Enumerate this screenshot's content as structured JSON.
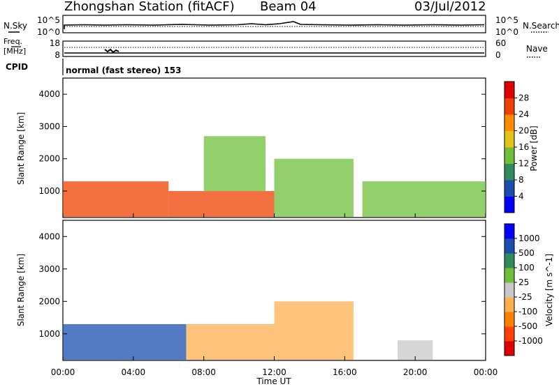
{
  "header": {
    "station": "Zhongshan Station (fitACF)",
    "beam": "Beam 04",
    "date": "03/Jul/2012"
  },
  "top_panels": {
    "nsky_label": "N.Sky",
    "nsky_ticks": [
      "10^5",
      "10^0"
    ],
    "nsearch_label": "N.Search",
    "nsearch_ticks": [
      "10^5",
      "10^0"
    ],
    "freq_label_1": "Freq.",
    "freq_label_2": "[MHz]",
    "freq_ticks": [
      "18",
      "8"
    ],
    "nave_label": "Nave",
    "nave_ticks": [
      "60",
      "0"
    ],
    "cpid_label": "CPID",
    "cpid_text": "normal (fast stereo) 153"
  },
  "axes": {
    "ylabel": "Slant Range [km]",
    "yticks": [
      "4000",
      "3000",
      "2000",
      "1000"
    ],
    "xticks": [
      "00:00",
      "04:00",
      "08:00",
      "12:00",
      "16:00",
      "20:00",
      "00:00"
    ],
    "xlabel": "Time UT"
  },
  "chart_data": [
    {
      "type": "heatmap",
      "title": "",
      "xlabel": "Time UT",
      "ylabel": "Slant Range [km]",
      "xlim": [
        "00:00",
        "24:00"
      ],
      "ylim": [
        180,
        4500
      ],
      "colorbar": {
        "label": "Power [dB]",
        "ticks": [
          "28",
          "24",
          "20",
          "16",
          "12",
          "8",
          "4"
        ],
        "colors": [
          "#0000ff",
          "#1a4fb0",
          "#2f8a5c",
          "#6fbf3a",
          "#e5c21a",
          "#ff8c00",
          "#f04000",
          "#e00000"
        ]
      },
      "echo_regions": [
        {
          "t_start": "00:00",
          "t_end": "06:00",
          "r_min": 200,
          "r_max": 1300,
          "level_db": 24
        },
        {
          "t_start": "06:00",
          "t_end": "12:00",
          "r_min": 200,
          "r_max": 1000,
          "level_db": 24
        },
        {
          "t_start": "08:00",
          "t_end": "11:30",
          "r_min": 1000,
          "r_max": 2700,
          "level_db": 12
        },
        {
          "t_start": "12:00",
          "t_end": "16:30",
          "r_min": 200,
          "r_max": 2000,
          "level_db": 12
        },
        {
          "t_start": "17:00",
          "t_end": "24:00",
          "r_min": 200,
          "r_max": 1300,
          "level_db": 12
        }
      ]
    },
    {
      "type": "heatmap",
      "title": "",
      "xlabel": "Time UT",
      "ylabel": "Slant Range [km]",
      "xlim": [
        "00:00",
        "24:00"
      ],
      "ylim": [
        180,
        4500
      ],
      "colorbar": {
        "label": "Velocity [m s^-1]",
        "ticks": [
          "1000",
          "500",
          "100",
          "25",
          "-25",
          "-100",
          "-500",
          "-1000"
        ],
        "colors": [
          "#e00000",
          "#ff4000",
          "#ff7f00",
          "#ffb050",
          "#c8c8c8",
          "#6fbf3a",
          "#2f8a5c",
          "#1a4fb0",
          "#0000ff"
        ]
      },
      "echo_regions": [
        {
          "t_start": "00:00",
          "t_end": "07:00",
          "r_min": 200,
          "r_max": 1300,
          "velocity": 500
        },
        {
          "t_start": "07:00",
          "t_end": "12:00",
          "r_min": 200,
          "r_max": 1300,
          "velocity": -100
        },
        {
          "t_start": "12:00",
          "t_end": "16:30",
          "r_min": 200,
          "r_max": 2000,
          "velocity": -100
        },
        {
          "t_start": "19:00",
          "t_end": "21:00",
          "r_min": 200,
          "r_max": 800,
          "velocity": -25
        }
      ]
    }
  ]
}
